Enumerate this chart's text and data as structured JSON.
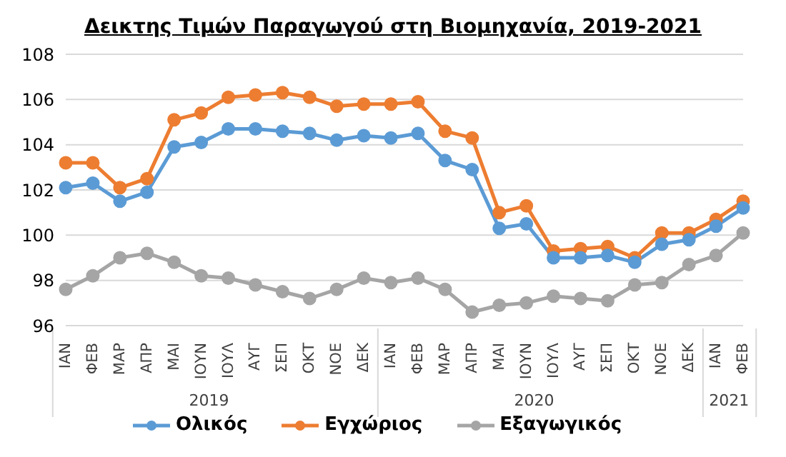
{
  "chart_data": {
    "type": "line",
    "title": "Δεικτης Τιμών Παραγωγού στη Βιομηχανία, 2019-2021",
    "categories": [
      "ΙΑΝ",
      "ΦΕΒ",
      "ΜΑΡ",
      "ΑΠΡ",
      "ΜΑΙ",
      "ΙΟΥΝ",
      "ΙΟΥΛ",
      "ΑΥΓ",
      "ΣΕΠ",
      "ΟΚΤ",
      "ΝΟΕ",
      "ΔΕΚ",
      "ΙΑΝ",
      "ΦΕΒ",
      "ΜΑΡ",
      "ΑΠΡ",
      "ΜΑΙ",
      "ΙΟΥΝ",
      "ΙΟΥΛ",
      "ΑΥΓ",
      "ΣΕΠ",
      "ΟΚΤ",
      "ΝΟΕ",
      "ΔΕΚ",
      "ΙΑΝ",
      "ΦΕΒ"
    ],
    "series": [
      {
        "name": "Ολικός",
        "color": "#5b9bd5",
        "values": [
          102.1,
          102.3,
          101.5,
          101.9,
          103.9,
          104.1,
          104.7,
          104.7,
          104.6,
          104.5,
          104.2,
          104.4,
          104.3,
          104.5,
          103.3,
          102.9,
          100.3,
          100.5,
          99.0,
          99.0,
          99.1,
          98.8,
          99.6,
          99.8,
          100.4,
          101.2
        ]
      },
      {
        "name": "Εγχώριος",
        "color": "#ed7d31",
        "values": [
          103.2,
          103.2,
          102.1,
          102.5,
          105.1,
          105.4,
          106.1,
          106.2,
          106.3,
          106.1,
          105.7,
          105.8,
          105.8,
          105.9,
          104.6,
          104.3,
          101.0,
          101.3,
          99.3,
          99.4,
          99.5,
          99.0,
          100.1,
          100.1,
          100.7,
          101.5
        ]
      },
      {
        "name": "Εξαγωγικός",
        "color": "#a5a5a5",
        "values": [
          97.6,
          98.2,
          99.0,
          99.2,
          98.8,
          98.2,
          98.1,
          97.8,
          97.5,
          97.2,
          97.6,
          98.1,
          97.9,
          98.1,
          97.6,
          96.6,
          96.9,
          97.0,
          97.3,
          97.2,
          97.1,
          97.8,
          97.9,
          98.7,
          99.1,
          100.1
        ]
      }
    ],
    "ylim": [
      96,
      108
    ],
    "yticks": [
      96,
      98,
      100,
      102,
      104,
      106,
      108
    ],
    "grid": "y",
    "legend": "bottom",
    "marker": "circle",
    "annotations": [
      "2019",
      "2020",
      "2021"
    ]
  }
}
